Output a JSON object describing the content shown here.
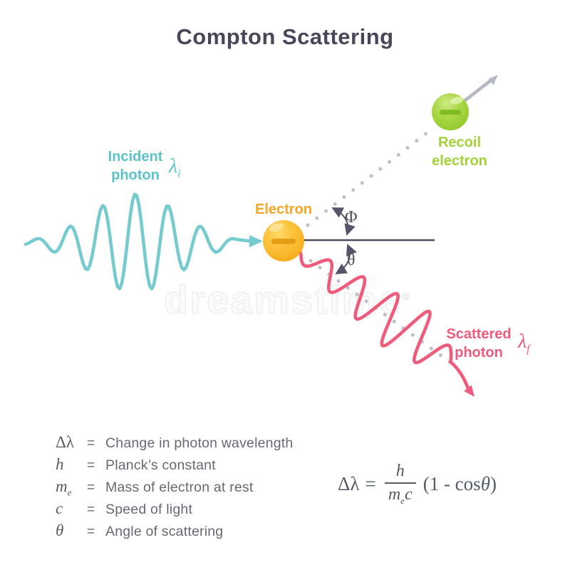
{
  "title": "Compton Scattering",
  "watermark": "dreamstime",
  "diagram": {
    "incident_photon": {
      "label_line1": "Incident",
      "label_line2": "photon",
      "symbol": "λ",
      "symbol_sub": "i"
    },
    "electron": {
      "label": "Electron"
    },
    "recoil_electron": {
      "label_line1": "Recoil",
      "label_line2": "electron"
    },
    "scattered_photon": {
      "label_line1": "Scattered",
      "label_line2": "photon",
      "symbol": "λ",
      "symbol_sub": "f"
    },
    "angles": {
      "phi": "Φ",
      "theta": "θ"
    }
  },
  "legend": {
    "rows": [
      {
        "symbol": "Δλ",
        "sub": "",
        "eq": "=",
        "definition": "Change in photon wavelength"
      },
      {
        "symbol": "h",
        "sub": "",
        "eq": "=",
        "definition": "Planck’s constant"
      },
      {
        "symbol": "m",
        "sub": "e",
        "eq": "=",
        "definition": "Mass of electron at rest"
      },
      {
        "symbol": "c",
        "sub": "",
        "eq": "=",
        "definition": "Speed of light"
      },
      {
        "symbol": "θ",
        "sub": "",
        "eq": "=",
        "definition": "Angle of scattering"
      }
    ]
  },
  "formula": {
    "lhs": "Δλ",
    "eq": "=",
    "numerator": "h",
    "den_base": "m",
    "den_sub": "e",
    "den_tail": "c",
    "rhs_pre": "(1 - cos",
    "rhs_theta": "θ",
    "rhs_post": ")"
  },
  "colors": {
    "title": "#47475a",
    "incident_wave": "#76cbcf",
    "incident_label": "#5cc3c8",
    "electron_ball": "#fbb62b",
    "electron_label": "#f7a623",
    "recoil_ball": "#a3d438",
    "recoil_label": "#a3d236",
    "scattered_wave": "#ee5c7c",
    "scattered_label": "#ee5c7c",
    "baseline": "#4b4b5c",
    "angle_arcs": "#55556a",
    "trajectory_dots": "#bfc1c9"
  }
}
